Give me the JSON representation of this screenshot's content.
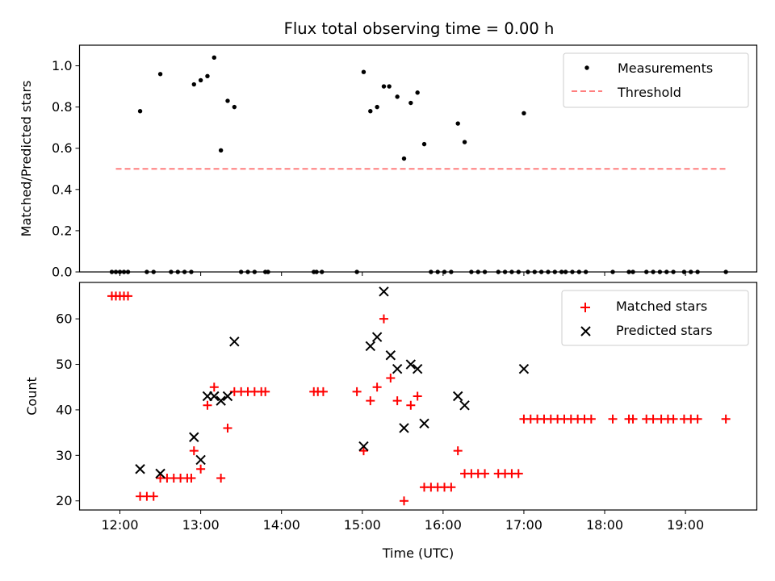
{
  "chart_data": [
    {
      "type": "scatter",
      "title": "Flux total observing time = 0.00 h",
      "xlabel": "",
      "ylabel": "Matched/Predicted stars",
      "xlim": [
        "11:30",
        "19:53"
      ],
      "ylim": [
        0,
        1.1
      ],
      "xticks": [
        "12:00",
        "13:00",
        "14:00",
        "15:00",
        "16:00",
        "17:00",
        "18:00",
        "19:00"
      ],
      "yticks": [
        "0.0",
        "0.2",
        "0.4",
        "0.6",
        "0.8",
        "1.0"
      ],
      "legend_position": "top-right",
      "series": [
        {
          "name": "Measurements",
          "marker": "dot",
          "color": "#000000",
          "points": [
            [
              "11:54",
              0.0
            ],
            [
              "11:57",
              0.0
            ],
            [
              "12:00",
              0.0
            ],
            [
              "12:03",
              0.0
            ],
            [
              "12:06",
              0.0
            ],
            [
              "12:15",
              0.78
            ],
            [
              "12:20",
              0.0
            ],
            [
              "12:25",
              0.0
            ],
            [
              "12:30",
              0.96
            ],
            [
              "12:38",
              0.0
            ],
            [
              "12:43",
              0.0
            ],
            [
              "12:48",
              0.0
            ],
            [
              "12:53",
              0.0
            ],
            [
              "12:55",
              0.91
            ],
            [
              "13:00",
              0.93
            ],
            [
              "13:05",
              0.95
            ],
            [
              "13:10",
              1.04
            ],
            [
              "13:15",
              0.59
            ],
            [
              "13:20",
              0.83
            ],
            [
              "13:25",
              0.8
            ],
            [
              "13:30",
              0.0
            ],
            [
              "13:35",
              0.0
            ],
            [
              "13:40",
              0.0
            ],
            [
              "13:48",
              0.0
            ],
            [
              "13:50",
              0.0
            ],
            [
              "14:24",
              0.0
            ],
            [
              "14:26",
              0.0
            ],
            [
              "14:30",
              0.0
            ],
            [
              "14:56",
              0.0
            ],
            [
              "15:01",
              0.97
            ],
            [
              "15:06",
              0.78
            ],
            [
              "15:11",
              0.8
            ],
            [
              "15:16",
              0.9
            ],
            [
              "15:20",
              0.9
            ],
            [
              "15:26",
              0.85
            ],
            [
              "15:31",
              0.55
            ],
            [
              "15:36",
              0.82
            ],
            [
              "15:41",
              0.87
            ],
            [
              "15:46",
              0.62
            ],
            [
              "15:51",
              0.0
            ],
            [
              "15:56",
              0.0
            ],
            [
              "16:01",
              0.0
            ],
            [
              "16:06",
              0.0
            ],
            [
              "16:11",
              0.72
            ],
            [
              "16:16",
              0.63
            ],
            [
              "16:21",
              0.0
            ],
            [
              "16:26",
              0.0
            ],
            [
              "16:31",
              0.0
            ],
            [
              "16:41",
              0.0
            ],
            [
              "16:46",
              0.0
            ],
            [
              "16:51",
              0.0
            ],
            [
              "16:56",
              0.0
            ],
            [
              "17:00",
              0.77
            ],
            [
              "17:03",
              0.0
            ],
            [
              "17:08",
              0.0
            ],
            [
              "17:13",
              0.0
            ],
            [
              "17:18",
              0.0
            ],
            [
              "17:23",
              0.0
            ],
            [
              "17:28",
              0.0
            ],
            [
              "17:31",
              0.0
            ],
            [
              "17:36",
              0.0
            ],
            [
              "17:41",
              0.0
            ],
            [
              "17:46",
              0.0
            ],
            [
              "18:06",
              0.0
            ],
            [
              "18:18",
              0.0
            ],
            [
              "18:21",
              0.0
            ],
            [
              "18:31",
              0.0
            ],
            [
              "18:36",
              0.0
            ],
            [
              "18:41",
              0.0
            ],
            [
              "18:46",
              0.0
            ],
            [
              "18:51",
              0.0
            ],
            [
              "18:59",
              0.0
            ],
            [
              "19:04",
              0.0
            ],
            [
              "19:09",
              0.0
            ],
            [
              "19:30",
              0.0
            ]
          ]
        },
        {
          "name": "Threshold",
          "marker": "dashed-line",
          "color": "#ff7f7f",
          "points": [
            [
              "11:57",
              0.5
            ],
            [
              "19:30",
              0.5
            ]
          ]
        }
      ]
    },
    {
      "type": "scatter",
      "title": "",
      "xlabel": "Time (UTC)",
      "ylabel": "Count",
      "xlim": [
        "11:30",
        "19:53"
      ],
      "ylim": [
        18,
        68
      ],
      "xticks": [
        "12:00",
        "13:00",
        "14:00",
        "15:00",
        "16:00",
        "17:00",
        "18:00",
        "19:00"
      ],
      "yticks": [
        "20",
        "30",
        "40",
        "50",
        "60"
      ],
      "legend_position": "top-right",
      "series": [
        {
          "name": "Matched stars",
          "marker": "plus",
          "color": "#ff0000",
          "points": [
            [
              "11:54",
              65
            ],
            [
              "11:57",
              65
            ],
            [
              "12:00",
              65
            ],
            [
              "12:03",
              65
            ],
            [
              "12:06",
              65
            ],
            [
              "12:15",
              21
            ],
            [
              "12:20",
              21
            ],
            [
              "12:25",
              21
            ],
            [
              "12:30",
              25
            ],
            [
              "12:35",
              25
            ],
            [
              "12:40",
              25
            ],
            [
              "12:45",
              25
            ],
            [
              "12:50",
              25
            ],
            [
              "12:53",
              25
            ],
            [
              "12:55",
              31
            ],
            [
              "13:00",
              27
            ],
            [
              "13:05",
              41
            ],
            [
              "13:10",
              45
            ],
            [
              "13:15",
              25
            ],
            [
              "13:20",
              36
            ],
            [
              "13:25",
              44
            ],
            [
              "13:30",
              44
            ],
            [
              "13:35",
              44
            ],
            [
              "13:40",
              44
            ],
            [
              "13:45",
              44
            ],
            [
              "13:48",
              44
            ],
            [
              "14:24",
              44
            ],
            [
              "14:27",
              44
            ],
            [
              "14:31",
              44
            ],
            [
              "14:56",
              44
            ],
            [
              "15:01",
              31
            ],
            [
              "15:06",
              42
            ],
            [
              "15:11",
              45
            ],
            [
              "15:16",
              60
            ],
            [
              "15:21",
              47
            ],
            [
              "15:26",
              42
            ],
            [
              "15:31",
              20
            ],
            [
              "15:36",
              41
            ],
            [
              "15:41",
              43
            ],
            [
              "15:46",
              23
            ],
            [
              "15:51",
              23
            ],
            [
              "15:56",
              23
            ],
            [
              "16:01",
              23
            ],
            [
              "16:06",
              23
            ],
            [
              "16:11",
              31
            ],
            [
              "16:16",
              26
            ],
            [
              "16:21",
              26
            ],
            [
              "16:26",
              26
            ],
            [
              "16:31",
              26
            ],
            [
              "16:41",
              26
            ],
            [
              "16:46",
              26
            ],
            [
              "16:51",
              26
            ],
            [
              "16:56",
              26
            ],
            [
              "17:00",
              38
            ],
            [
              "17:05",
              38
            ],
            [
              "17:10",
              38
            ],
            [
              "17:15",
              38
            ],
            [
              "17:20",
              38
            ],
            [
              "17:25",
              38
            ],
            [
              "17:30",
              38
            ],
            [
              "17:35",
              38
            ],
            [
              "17:40",
              38
            ],
            [
              "17:45",
              38
            ],
            [
              "17:50",
              38
            ],
            [
              "18:06",
              38
            ],
            [
              "18:18",
              38
            ],
            [
              "18:21",
              38
            ],
            [
              "18:31",
              38
            ],
            [
              "18:36",
              38
            ],
            [
              "18:42",
              38
            ],
            [
              "18:47",
              38
            ],
            [
              "18:51",
              38
            ],
            [
              "18:59",
              38
            ],
            [
              "19:04",
              38
            ],
            [
              "19:09",
              38
            ],
            [
              "19:30",
              38
            ]
          ]
        },
        {
          "name": "Predicted stars",
          "marker": "x",
          "color": "#000000",
          "points": [
            [
              "12:15",
              27
            ],
            [
              "12:30",
              26
            ],
            [
              "12:55",
              34
            ],
            [
              "13:00",
              29
            ],
            [
              "13:05",
              43
            ],
            [
              "13:10",
              43
            ],
            [
              "13:15",
              42
            ],
            [
              "13:20",
              43
            ],
            [
              "13:25",
              55
            ],
            [
              "15:01",
              32
            ],
            [
              "15:06",
              54
            ],
            [
              "15:11",
              56
            ],
            [
              "15:16",
              66
            ],
            [
              "15:21",
              52
            ],
            [
              "15:26",
              49
            ],
            [
              "15:31",
              36
            ],
            [
              "15:36",
              50
            ],
            [
              "15:41",
              49
            ],
            [
              "15:46",
              37
            ],
            [
              "16:11",
              43
            ],
            [
              "16:16",
              41
            ],
            [
              "17:00",
              49
            ]
          ]
        }
      ]
    }
  ]
}
